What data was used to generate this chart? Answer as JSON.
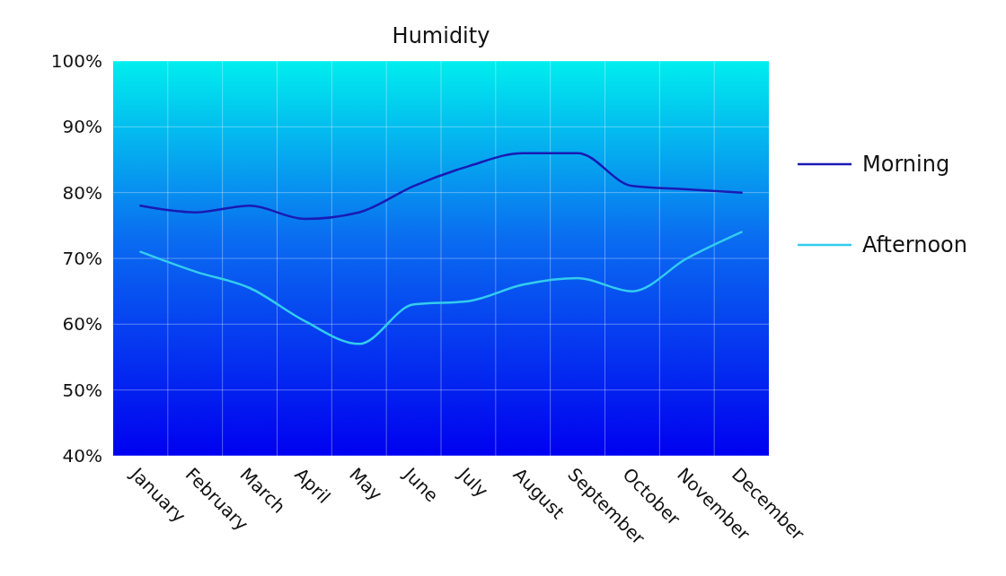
{
  "chart_data": {
    "type": "line",
    "title": "Humidity",
    "categories": [
      "January",
      "February",
      "March",
      "April",
      "May",
      "June",
      "July",
      "August",
      "September",
      "October",
      "November",
      "December"
    ],
    "series": [
      {
        "name": "Morning",
        "color": "#1a1ab4",
        "values": [
          78,
          77,
          78,
          76,
          77,
          81,
          84,
          86,
          86,
          81,
          80.5,
          80
        ]
      },
      {
        "name": "Afternoon",
        "color": "#33ccee",
        "values": [
          71,
          68,
          65.5,
          60.5,
          57,
          63,
          63.5,
          66,
          67,
          65,
          70,
          74
        ]
      }
    ],
    "ylim": [
      40,
      100
    ],
    "yticks": [
      {
        "value": 40,
        "label": "40%"
      },
      {
        "value": 50,
        "label": "50%"
      },
      {
        "value": 60,
        "label": "60%"
      },
      {
        "value": 70,
        "label": "70%"
      },
      {
        "value": 80,
        "label": "80%"
      },
      {
        "value": 90,
        "label": "90%"
      },
      {
        "value": 100,
        "label": "100%"
      }
    ],
    "grid": true,
    "legend": "right",
    "marker": "none",
    "line_style": "solid"
  }
}
